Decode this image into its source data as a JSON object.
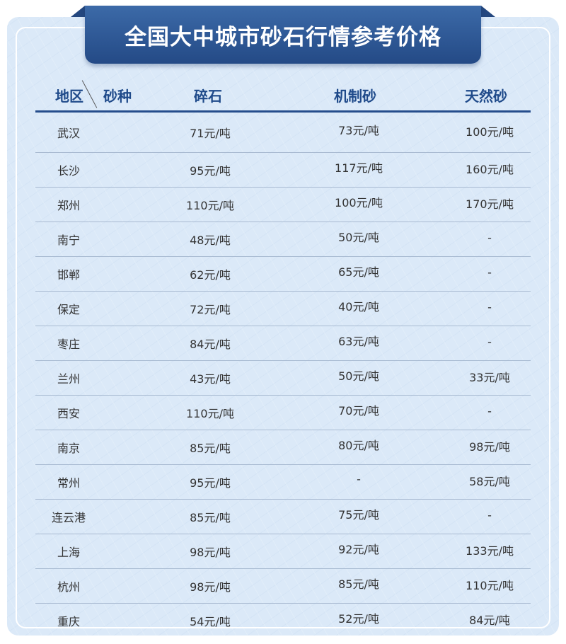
{
  "title": "全国大中城市砂石行情参考价格",
  "colors": {
    "banner": "#2c5594",
    "header_text": "#1f4a8a",
    "background": "#dbe9f8"
  },
  "header": {
    "region": "地区",
    "sand_type": "砂种",
    "columns": [
      "碎石",
      "机制砂",
      "天然砂"
    ]
  },
  "rows": [
    {
      "city": "武汉",
      "values": [
        "71元/吨",
        "73元/吨",
        "100元/吨"
      ]
    },
    {
      "city": "长沙",
      "values": [
        "95元/吨",
        "117元/吨",
        "160元/吨"
      ]
    },
    {
      "city": "郑州",
      "values": [
        "110元/吨",
        "100元/吨",
        "170元/吨"
      ]
    },
    {
      "city": "南宁",
      "values": [
        "48元/吨",
        "50元/吨",
        "-"
      ]
    },
    {
      "city": "邯郸",
      "values": [
        "62元/吨",
        "65元/吨",
        "-"
      ]
    },
    {
      "city": "保定",
      "values": [
        "72元/吨",
        "40元/吨",
        "-"
      ]
    },
    {
      "city": "枣庄",
      "values": [
        "84元/吨",
        "63元/吨",
        "-"
      ]
    },
    {
      "city": "兰州",
      "values": [
        "43元/吨",
        "50元/吨",
        "33元/吨"
      ]
    },
    {
      "city": "西安",
      "values": [
        "110元/吨",
        "70元/吨",
        "-"
      ]
    },
    {
      "city": "南京",
      "values": [
        "85元/吨",
        "80元/吨",
        "98元/吨"
      ]
    },
    {
      "city": "常州",
      "values": [
        "95元/吨",
        "-",
        "58元/吨"
      ]
    },
    {
      "city": "连云港",
      "values": [
        "85元/吨",
        "75元/吨",
        "-"
      ]
    },
    {
      "city": "上海",
      "values": [
        "98元/吨",
        "92元/吨",
        "133元/吨"
      ]
    },
    {
      "city": "杭州",
      "values": [
        "98元/吨",
        "85元/吨",
        "110元/吨"
      ]
    },
    {
      "city": "重庆",
      "values": [
        "54元/吨",
        "52元/吨",
        "84元/吨"
      ]
    }
  ]
}
